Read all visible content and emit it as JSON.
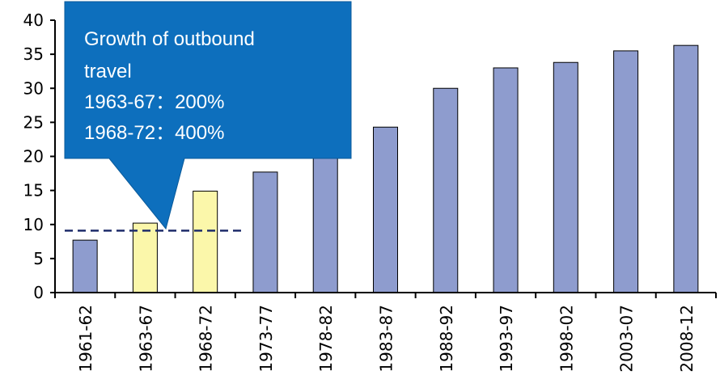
{
  "chart_data": {
    "type": "bar",
    "categories": [
      "1961-62",
      "1963-67",
      "1968-72",
      "1973-77",
      "1978-82",
      "1983-87",
      "1988-92",
      "1993-97",
      "1998-02",
      "2003-07",
      "2008-12"
    ],
    "values": [
      7.7,
      10.2,
      14.9,
      17.7,
      20.3,
      24.3,
      30.0,
      33.0,
      33.8,
      35.5,
      36.3
    ],
    "highlighted_categories": [
      "1963-67",
      "1968-72"
    ],
    "ylim": [
      0,
      40
    ],
    "yticks": [
      0,
      5,
      10,
      15,
      20,
      25,
      30,
      35,
      40
    ],
    "reference_line": 9.1,
    "grid": false,
    "colors": {
      "bar": "#8e9cce",
      "bar_highlight": "#fbf7aa",
      "bar_border": "#000000",
      "callout": "#0d6fbd",
      "callout_border": "#0a5a9a",
      "reference_line": "#1f2d6b"
    },
    "annotation": {
      "lines": [
        "Growth of outbound",
        "travel",
        "1963-67：200%",
        "1968-72：400%"
      ]
    }
  }
}
